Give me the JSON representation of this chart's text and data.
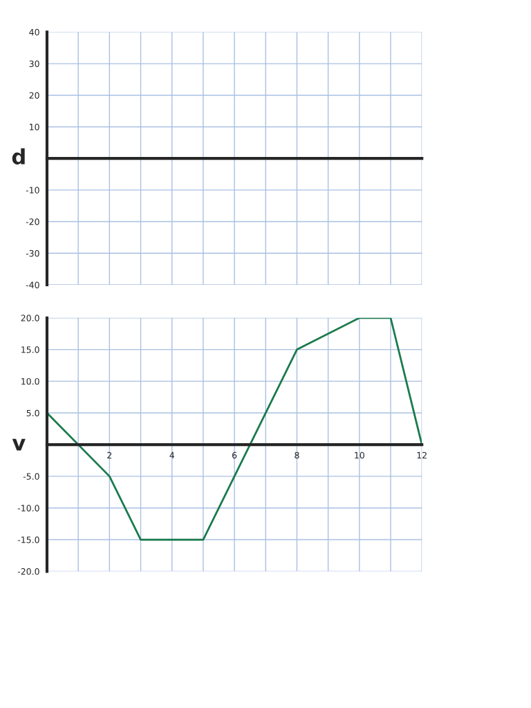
{
  "chart_data": [
    {
      "type": "line",
      "ylabel": "d",
      "xlim": [
        0,
        12
      ],
      "ylim": [
        -40,
        40
      ],
      "yticks": [
        {
          "value": -40,
          "label": "-40"
        },
        {
          "value": -30,
          "label": "-30"
        },
        {
          "value": -20,
          "label": "-20"
        },
        {
          "value": -10,
          "label": "-10"
        },
        {
          "value": 0,
          "label": null
        },
        {
          "value": 10,
          "label": "10"
        },
        {
          "value": 20,
          "label": "20"
        },
        {
          "value": 30,
          "label": "30"
        },
        {
          "value": 40,
          "label": "40"
        }
      ],
      "tick_labels": "y",
      "grid": true
    },
    {
      "type": "line",
      "ylabel": "v",
      "xlim": [
        0,
        12
      ],
      "ylim": [
        -20,
        20
      ],
      "xticks": [
        {
          "value": 0,
          "label": null
        },
        2,
        4,
        6,
        8,
        10,
        12
      ],
      "yticks": [
        {
          "value": -20,
          "label": "-20.0"
        },
        {
          "value": -15,
          "label": "-15.0"
        },
        {
          "value": -10,
          "label": "-10.0"
        },
        {
          "value": -5,
          "label": "-5.0"
        },
        {
          "value": 0,
          "label": null
        },
        {
          "value": 5,
          "label": "5.0"
        },
        {
          "value": 10,
          "label": "10.0"
        },
        {
          "value": 15,
          "label": "15.0"
        },
        {
          "value": 20,
          "label": "20.0"
        }
      ],
      "grid": true,
      "marker": "none",
      "line_style": "solid",
      "series": [
        {
          "color": "#1a7a4c",
          "x": [
            0,
            2,
            3,
            5,
            8,
            10,
            11,
            12
          ],
          "values": [
            5,
            -5,
            -15,
            -15,
            15,
            20,
            20,
            0
          ]
        }
      ]
    }
  ]
}
